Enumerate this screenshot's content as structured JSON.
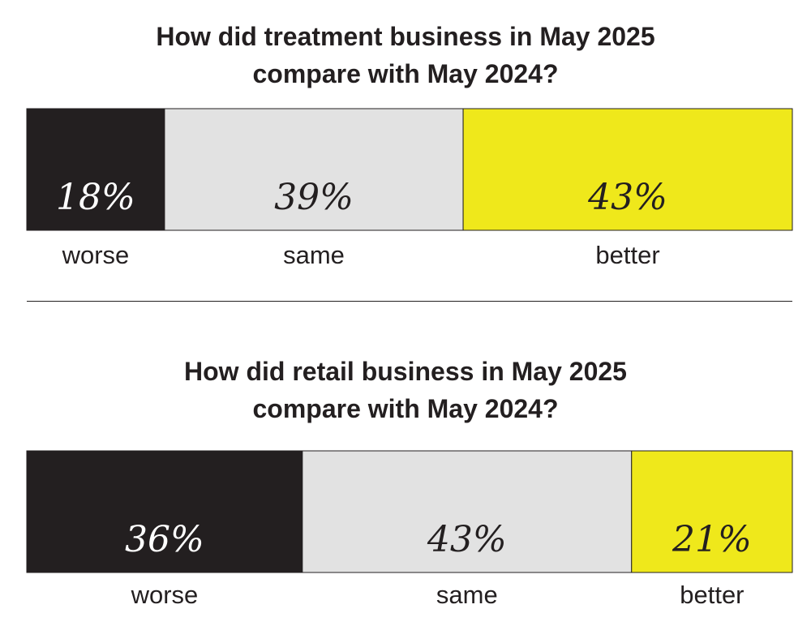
{
  "chart_data": [
    {
      "type": "bar",
      "subtype": "stacked-100",
      "title_lines": [
        "How did treatment business in May 2025",
        "compare with May 2024?"
      ],
      "categories": [
        "worse",
        "same",
        "better"
      ],
      "values": [
        18,
        39,
        43
      ],
      "value_labels": [
        "18%",
        "39%",
        "43%"
      ],
      "colors": [
        "#231f20",
        "#e2e2e2",
        "#efe81b"
      ],
      "label_colors": [
        "#ffffff",
        "#231f20",
        "#231f20"
      ]
    },
    {
      "type": "bar",
      "subtype": "stacked-100",
      "title_lines": [
        "How did retail business in May 2025",
        "compare with May 2024?"
      ],
      "categories": [
        "worse",
        "same",
        "better"
      ],
      "values": [
        36,
        43,
        21
      ],
      "value_labels": [
        "36%",
        "43%",
        "21%"
      ],
      "colors": [
        "#231f20",
        "#e2e2e2",
        "#efe81b"
      ],
      "label_colors": [
        "#ffffff",
        "#231f20",
        "#231f20"
      ]
    }
  ]
}
